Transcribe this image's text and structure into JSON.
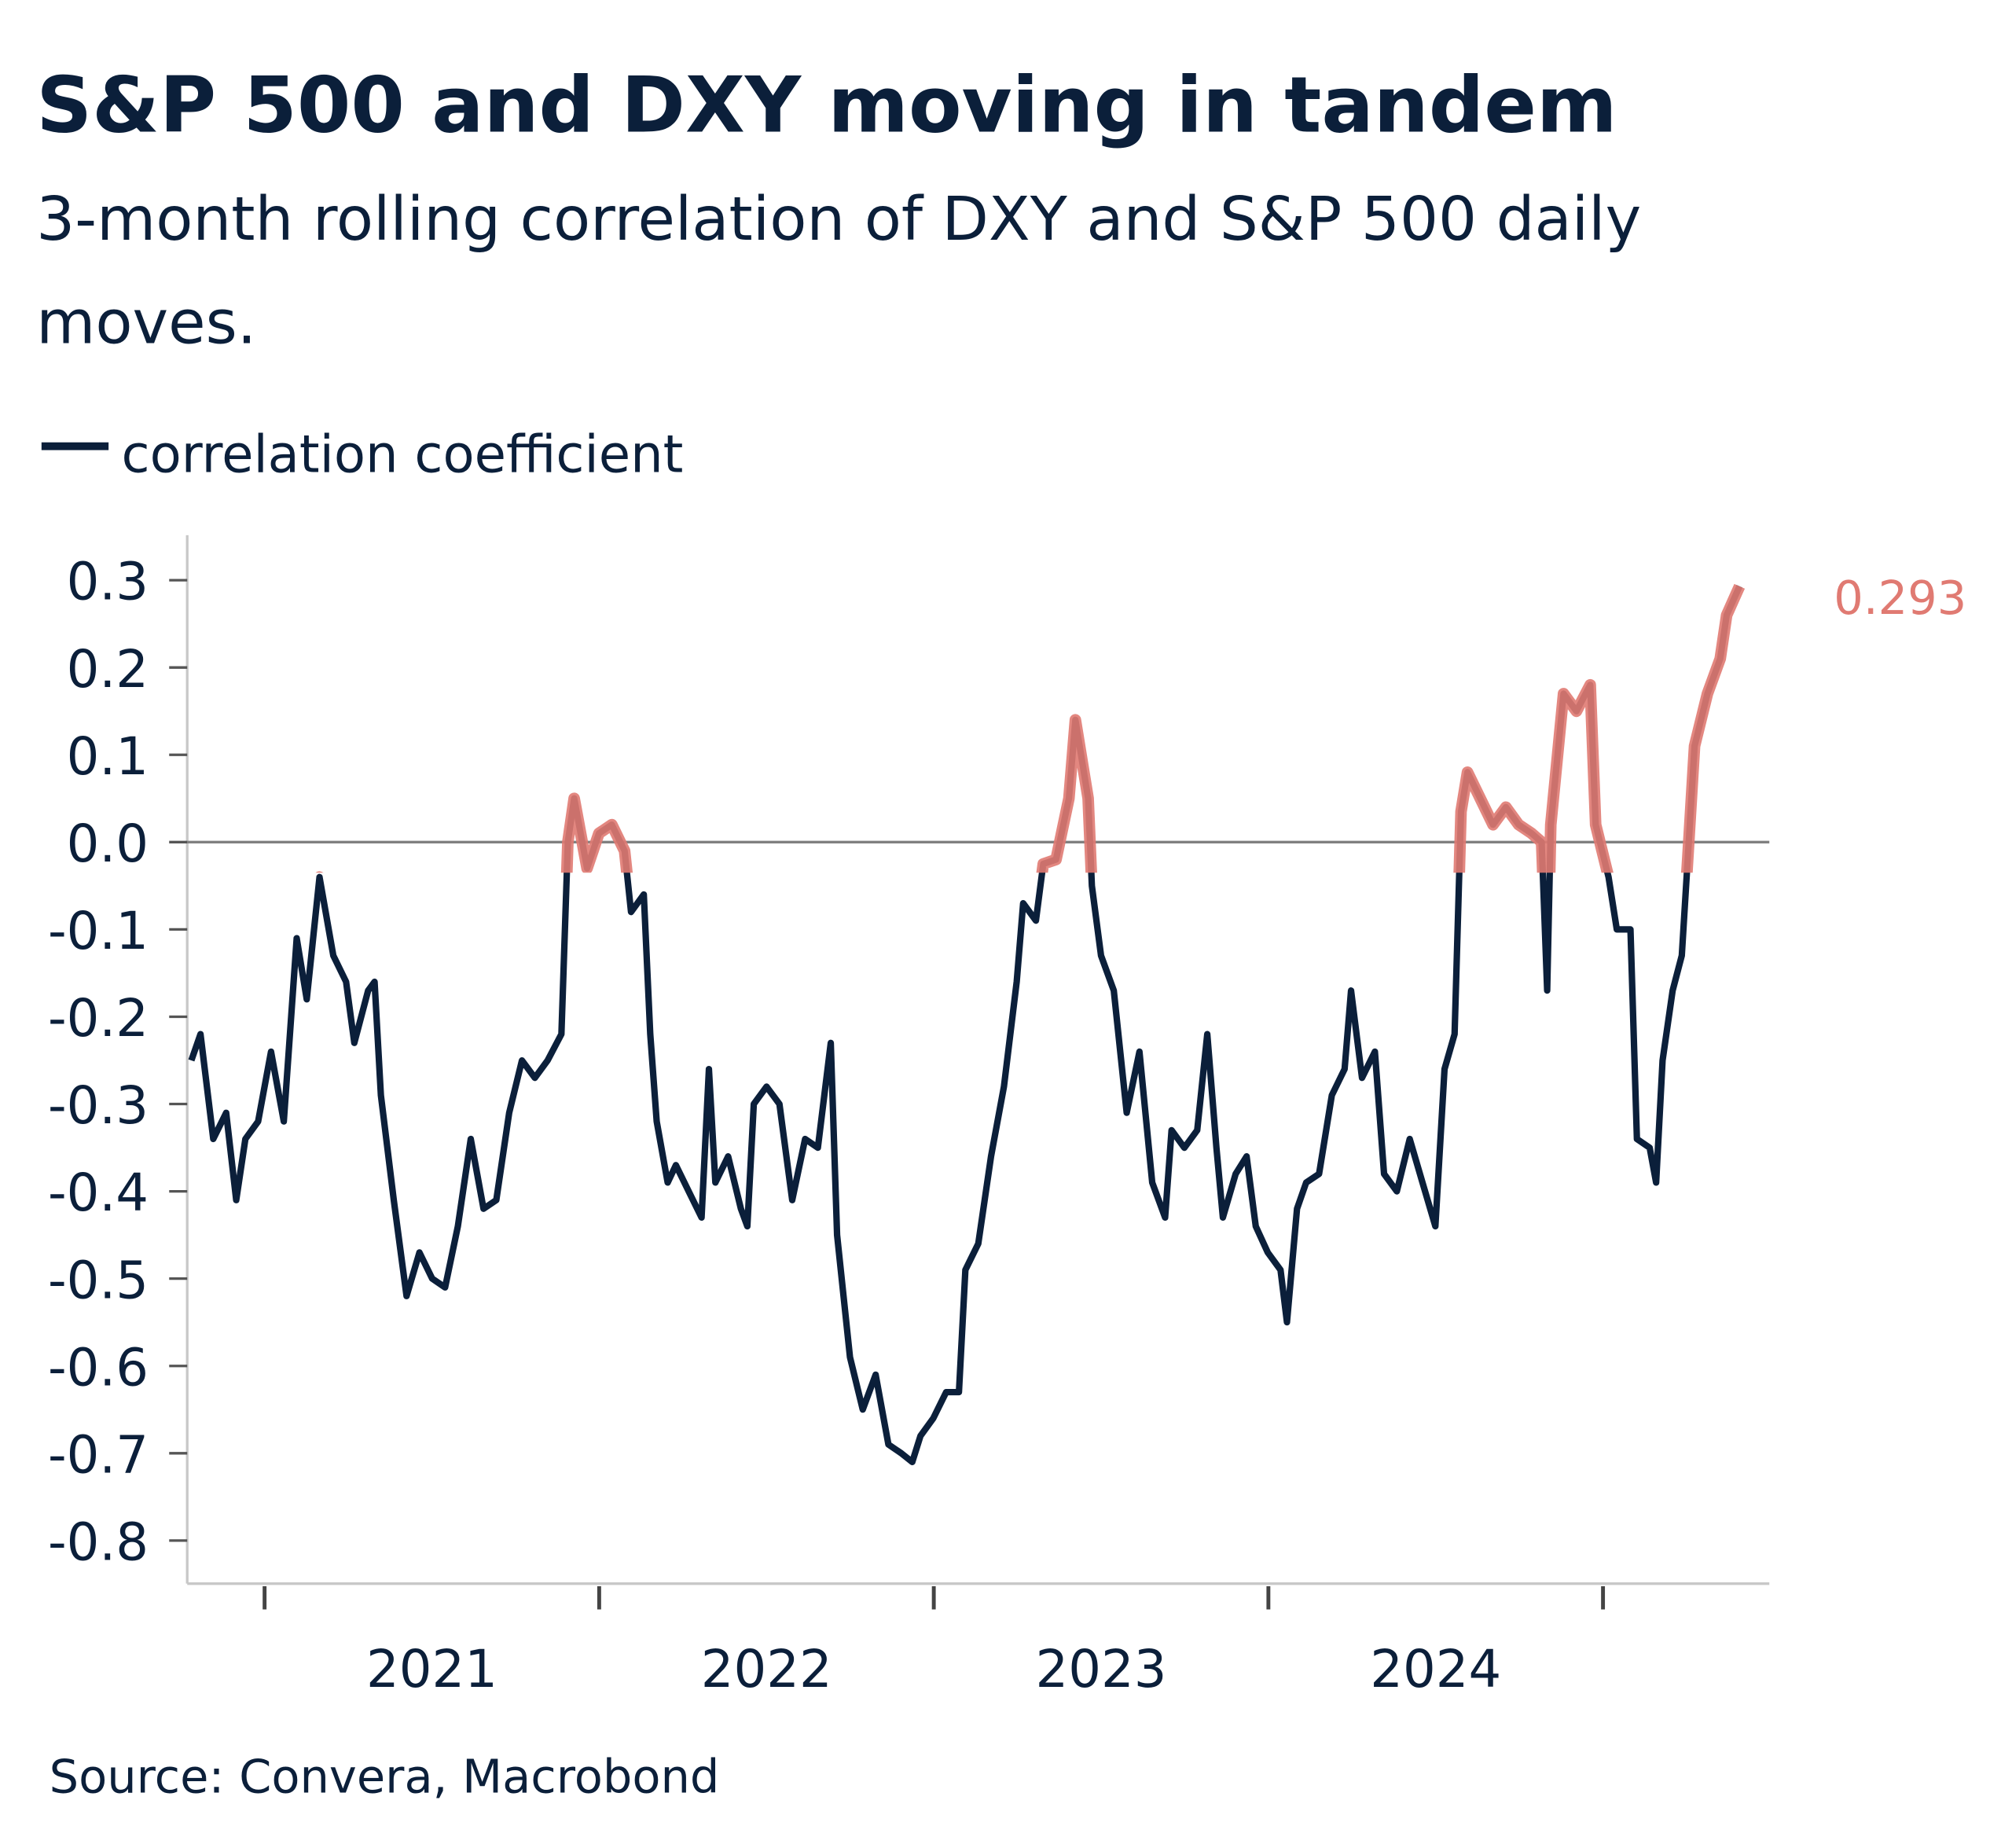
{
  "title": "S&P 500 and DXY moving in tandem",
  "subtitle_line1": "3-month rolling correlation of DXY and S&P 500 daily",
  "subtitle_line2": "moves.",
  "source": "Source: Convera, Macrobond",
  "colors": {
    "line": "#0b1f3a",
    "highlight": "#e07a72",
    "zero_line": "#808080"
  },
  "chart_data": {
    "type": "line",
    "title": "S&P 500 and DXY moving in tandem",
    "xlabel": "",
    "ylabel": "",
    "ylim": [
      -0.85,
      0.35
    ],
    "yticks": [
      "0.3",
      "0.2",
      "0.1",
      "0.0",
      "-0.1",
      "-0.2",
      "-0.3",
      "-0.4",
      "-0.5",
      "-0.6",
      "-0.7",
      "-0.8"
    ],
    "xticks": [
      "2021",
      "2022",
      "2023",
      "2024"
    ],
    "grid": false,
    "legend": "top-left",
    "end_label": "0.293",
    "highlight_note_threshold": 0.0,
    "series": [
      {
        "name": "correlation coefficient",
        "points": [
          [
            "2020-10-13",
            -0.25
          ],
          [
            "2020-10-23",
            -0.22
          ],
          [
            "2020-11-06",
            -0.34
          ],
          [
            "2020-11-20",
            -0.31
          ],
          [
            "2020-12-01",
            -0.41
          ],
          [
            "2020-12-11",
            -0.34
          ],
          [
            "2020-12-25",
            -0.32
          ],
          [
            "2021-01-08",
            -0.24
          ],
          [
            "2021-01-22",
            -0.32
          ],
          [
            "2021-02-05",
            -0.11
          ],
          [
            "2021-02-16",
            -0.18
          ],
          [
            "2021-03-02",
            -0.04
          ],
          [
            "2021-03-17",
            -0.13
          ],
          [
            "2021-03-31",
            -0.16
          ],
          [
            "2021-04-09",
            -0.23
          ],
          [
            "2021-04-24",
            -0.17
          ],
          [
            "2021-05-01",
            -0.16
          ],
          [
            "2021-05-08",
            -0.29
          ],
          [
            "2021-05-22",
            -0.41
          ],
          [
            "2021-06-05",
            -0.52
          ],
          [
            "2021-06-19",
            -0.47
          ],
          [
            "2021-07-03",
            -0.5
          ],
          [
            "2021-07-17",
            -0.51
          ],
          [
            "2021-07-31",
            -0.44
          ],
          [
            "2021-08-14",
            -0.34
          ],
          [
            "2021-08-28",
            -0.42
          ],
          [
            "2021-09-11",
            -0.41
          ],
          [
            "2021-09-25",
            -0.31
          ],
          [
            "2021-10-09",
            -0.25
          ],
          [
            "2021-10-23",
            -0.27
          ],
          [
            "2021-11-06",
            -0.25
          ],
          [
            "2021-11-21",
            -0.22
          ],
          [
            "2021-11-28",
            0.0
          ],
          [
            "2021-12-05",
            0.05
          ],
          [
            "2021-12-19",
            -0.03
          ],
          [
            "2022-01-01",
            0.01
          ],
          [
            "2022-01-15",
            0.02
          ],
          [
            "2022-01-29",
            -0.01
          ],
          [
            "2022-02-05",
            -0.08
          ],
          [
            "2022-02-19",
            -0.06
          ],
          [
            "2022-02-26",
            -0.22
          ],
          [
            "2022-03-05",
            -0.32
          ],
          [
            "2022-03-17",
            -0.39
          ],
          [
            "2022-03-26",
            -0.37
          ],
          [
            "2022-04-09",
            -0.4
          ],
          [
            "2022-04-23",
            -0.43
          ],
          [
            "2022-05-01",
            -0.26
          ],
          [
            "2022-05-08",
            -0.39
          ],
          [
            "2022-05-22",
            -0.36
          ],
          [
            "2022-06-05",
            -0.42
          ],
          [
            "2022-06-12",
            -0.44
          ],
          [
            "2022-06-19",
            -0.3
          ],
          [
            "2022-07-03",
            -0.28
          ],
          [
            "2022-07-17",
            -0.3
          ],
          [
            "2022-07-31",
            -0.41
          ],
          [
            "2022-08-14",
            -0.34
          ],
          [
            "2022-08-28",
            -0.35
          ],
          [
            "2022-09-11",
            -0.23
          ],
          [
            "2022-09-18",
            -0.45
          ],
          [
            "2022-10-02",
            -0.59
          ],
          [
            "2022-10-16",
            -0.65
          ],
          [
            "2022-10-30",
            -0.61
          ],
          [
            "2022-11-13",
            -0.69
          ],
          [
            "2022-11-27",
            -0.7
          ],
          [
            "2022-12-09",
            -0.71
          ],
          [
            "2022-12-18",
            -0.68
          ],
          [
            "2023-01-01",
            -0.66
          ],
          [
            "2023-01-15",
            -0.63
          ],
          [
            "2023-01-29",
            -0.63
          ],
          [
            "2023-02-05",
            -0.49
          ],
          [
            "2023-02-19",
            -0.46
          ],
          [
            "2023-03-05",
            -0.36
          ],
          [
            "2023-03-19",
            -0.28
          ],
          [
            "2023-04-02",
            -0.16
          ],
          [
            "2023-04-09",
            -0.07
          ],
          [
            "2023-04-23",
            -0.09
          ],
          [
            "2023-05-01",
            -0.025
          ],
          [
            "2023-05-15",
            -0.02
          ],
          [
            "2023-05-29",
            0.05
          ],
          [
            "2023-06-05",
            0.14
          ],
          [
            "2023-06-19",
            0.05
          ],
          [
            "2023-06-23",
            -0.05
          ],
          [
            "2023-07-03",
            -0.13
          ],
          [
            "2023-07-17",
            -0.17
          ],
          [
            "2023-07-31",
            -0.31
          ],
          [
            "2023-08-14",
            -0.24
          ],
          [
            "2023-08-28",
            -0.39
          ],
          [
            "2023-09-11",
            -0.43
          ],
          [
            "2023-09-18",
            -0.33
          ],
          [
            "2023-10-02",
            -0.35
          ],
          [
            "2023-10-16",
            -0.33
          ],
          [
            "2023-10-27",
            -0.22
          ],
          [
            "2023-11-06",
            -0.35
          ],
          [
            "2023-11-13",
            -0.43
          ],
          [
            "2023-11-27",
            -0.38
          ],
          [
            "2023-12-09",
            -0.36
          ],
          [
            "2023-12-19",
            -0.44
          ],
          [
            "2024-01-01",
            -0.47
          ],
          [
            "2024-01-15",
            -0.49
          ],
          [
            "2024-01-22",
            -0.55
          ],
          [
            "2024-02-02",
            -0.42
          ],
          [
            "2024-02-12",
            -0.39
          ],
          [
            "2024-02-26",
            -0.38
          ],
          [
            "2024-03-11",
            -0.29
          ],
          [
            "2024-03-25",
            -0.26
          ],
          [
            "2024-04-01",
            -0.17
          ],
          [
            "2024-04-13",
            -0.27
          ],
          [
            "2024-04-27",
            -0.24
          ],
          [
            "2024-05-07",
            -0.38
          ],
          [
            "2024-05-21",
            -0.4
          ],
          [
            "2024-06-04",
            -0.34
          ],
          [
            "2024-06-18",
            -0.39
          ],
          [
            "2024-07-02",
            -0.44
          ],
          [
            "2024-07-12",
            -0.26
          ],
          [
            "2024-07-23",
            -0.22
          ],
          [
            "2024-07-30",
            0.035
          ],
          [
            "2024-08-06",
            0.08
          ],
          [
            "2024-08-20",
            0.05
          ],
          [
            "2024-09-03",
            0.02
          ],
          [
            "2024-09-17",
            0.04
          ],
          [
            "2024-10-01",
            0.02
          ],
          [
            "2024-10-15",
            0.01
          ],
          [
            "2024-10-26",
            0.0
          ],
          [
            "2024-11-01",
            -0.17
          ],
          [
            "2024-11-05",
            0.02
          ],
          [
            "2024-11-19",
            0.17
          ],
          [
            "2024-12-03",
            0.15
          ],
          [
            "2024-12-18",
            0.18
          ],
          [
            "2024-12-24",
            0.02
          ],
          [
            "2025-01-07",
            -0.04
          ],
          [
            "2025-01-16",
            -0.1
          ],
          [
            "2025-01-31",
            -0.1
          ],
          [
            "2025-02-07",
            -0.34
          ],
          [
            "2025-02-21",
            -0.35
          ],
          [
            "2025-02-28",
            -0.39
          ],
          [
            "2025-03-07",
            -0.25
          ],
          [
            "2025-03-18",
            -0.17
          ],
          [
            "2025-03-28",
            -0.13
          ],
          [
            "2025-04-04",
            -0.01
          ],
          [
            "2025-04-11",
            0.11
          ],
          [
            "2025-04-25",
            0.17
          ],
          [
            "2025-05-09",
            0.21
          ],
          [
            "2025-05-16",
            0.26
          ],
          [
            "2025-05-30",
            0.293
          ]
        ]
      }
    ]
  }
}
